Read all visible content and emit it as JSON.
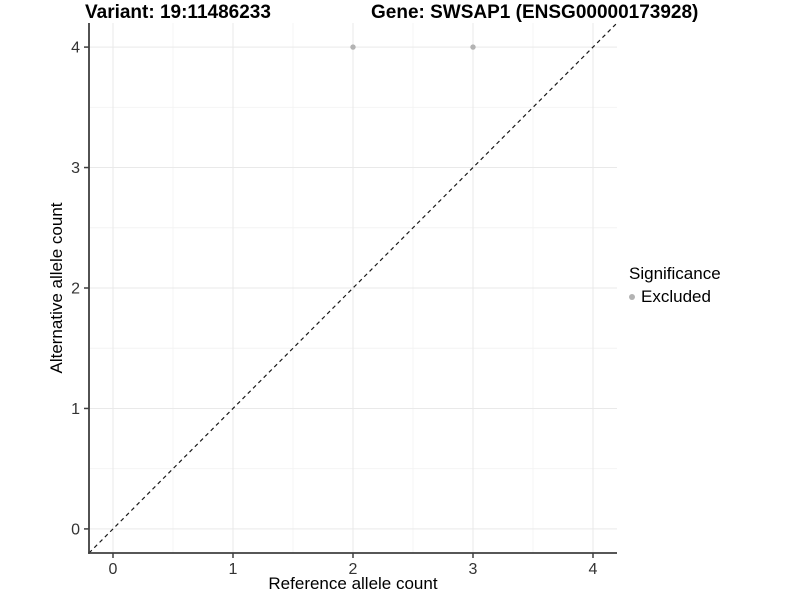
{
  "chart_data": {
    "type": "scatter",
    "title_left": "Variant: 19:11486233",
    "title_right": "Gene: SWSAP1 (ENSG00000173928)",
    "xlabel": "Reference allele count",
    "ylabel": "Alternative allele count",
    "xlim": [
      -0.2,
      4.2
    ],
    "ylim": [
      -0.2,
      4.2
    ],
    "x_major_ticks": [
      0,
      1,
      2,
      3,
      4
    ],
    "y_major_ticks": [
      0,
      1,
      2,
      3,
      4
    ],
    "x_minor_ticks": [
      0.5,
      1.5,
      2.5,
      3.5
    ],
    "y_minor_ticks": [
      0.5,
      1.5,
      2.5,
      3.5
    ],
    "grid": true,
    "series": [
      {
        "name": "Excluded",
        "color": "#b3b3b3",
        "marker": "circle",
        "points": [
          {
            "x": 2,
            "y": 4
          },
          {
            "x": 3,
            "y": 4
          }
        ]
      }
    ],
    "reference_line": {
      "style": "dashed",
      "color": "#1a1a1a",
      "from": [
        -0.2,
        -0.2
      ],
      "to": [
        4.2,
        4.2
      ]
    },
    "legend": {
      "title": "Significance",
      "position": "right",
      "items": [
        {
          "label": "Excluded",
          "color": "#b3b3b3",
          "marker": "circle"
        }
      ]
    }
  },
  "colors": {
    "background": "#ffffff",
    "grid_major": "#e9e9e9",
    "grid_minor": "#f4f4f4",
    "axis_line": "#3f3f3f",
    "tick_mark": "#3f3f3f",
    "tick_label": "#333333",
    "point": "#b3b3b3",
    "dashed_line": "#1a1a1a",
    "text": "#000000"
  }
}
